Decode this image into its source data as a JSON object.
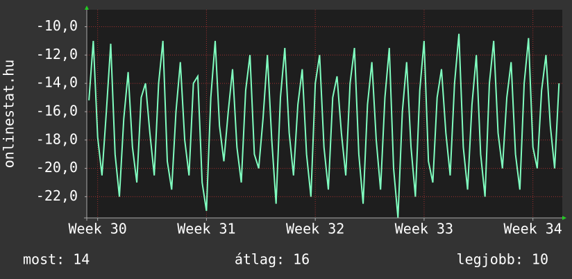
{
  "chart_data": {
    "type": "line",
    "y_label": "onlinestat.hu",
    "xlim": [
      29.9,
      34.27
    ],
    "xticks": [
      {
        "value": 30,
        "label": "Week 30"
      },
      {
        "value": 31,
        "label": "Week 31"
      },
      {
        "value": 32,
        "label": "Week 32"
      },
      {
        "value": 33,
        "label": "Week 33"
      },
      {
        "value": 34,
        "label": "Week 34"
      }
    ],
    "ylim": [
      -23.5,
      -8.8
    ],
    "yticks": [
      {
        "value": -10,
        "label": "-10,0"
      },
      {
        "value": -12,
        "label": "-12,0"
      },
      {
        "value": -14,
        "label": "-14,0"
      },
      {
        "value": -16,
        "label": "-16,0"
      },
      {
        "value": -18,
        "label": "-18,0"
      },
      {
        "value": -20,
        "label": "-20,0"
      },
      {
        "value": -22,
        "label": "-22,0"
      }
    ],
    "grid": true,
    "x": [
      29.92,
      29.96,
      30,
      30.04,
      30.08,
      30.12,
      30.16,
      30.2,
      30.24,
      30.28,
      30.32,
      30.36,
      30.4,
      30.44,
      30.48,
      30.52,
      30.56,
      30.6,
      30.64,
      30.68,
      30.72,
      30.76,
      30.8,
      30.84,
      30.88,
      30.92,
      30.96,
      31,
      31.04,
      31.08,
      31.12,
      31.16,
      31.2,
      31.24,
      31.28,
      31.32,
      31.36,
      31.4,
      31.44,
      31.48,
      31.52,
      31.56,
      31.6,
      31.64,
      31.68,
      31.72,
      31.76,
      31.8,
      31.84,
      31.88,
      31.92,
      31.96,
      32,
      32.04,
      32.08,
      32.12,
      32.16,
      32.2,
      32.24,
      32.28,
      32.32,
      32.36,
      32.4,
      32.44,
      32.48,
      32.52,
      32.56,
      32.6,
      32.64,
      32.68,
      32.72,
      32.76,
      32.8,
      32.84,
      32.88,
      32.92,
      32.96,
      33,
      33.04,
      33.08,
      33.12,
      33.16,
      33.2,
      33.24,
      33.28,
      33.32,
      33.36,
      33.4,
      33.44,
      33.48,
      33.52,
      33.56,
      33.6,
      33.64,
      33.68,
      33.72,
      33.76,
      33.8,
      33.84,
      33.88,
      33.92,
      33.96,
      34,
      34.04,
      34.08,
      34.12,
      34.16,
      34.2,
      34.24
    ],
    "series": [
      {
        "color": "#80ffc0",
        "values": [
          -15.2,
          -11,
          -17.8,
          -20.5,
          -16,
          -11.2,
          -19,
          -22,
          -16.5,
          -13.2,
          -18.5,
          -21,
          -15,
          -14,
          -17.5,
          -20.5,
          -14,
          -11,
          -19.5,
          -21.5,
          -16,
          -12.5,
          -18,
          -20.5,
          -14,
          -13.5,
          -21,
          -23,
          -15,
          -11,
          -17,
          -19.5,
          -16,
          -13,
          -18.5,
          -21,
          -14.5,
          -12,
          -19,
          -20,
          -16.5,
          -12,
          -18,
          -22.5,
          -15,
          -11.5,
          -17.5,
          -20.5,
          -15.5,
          -13,
          -19,
          -22,
          -14,
          -12,
          -18.5,
          -21.5,
          -15,
          -13.5,
          -17.5,
          -20.5,
          -14,
          -11.5,
          -19,
          -22.5,
          -15.5,
          -12.5,
          -18,
          -21.5,
          -15,
          -11.5,
          -20,
          -23.5,
          -16,
          -12.5,
          -18.5,
          -22,
          -14.5,
          -11,
          -19.5,
          -21,
          -15,
          -13,
          -17.5,
          -20.5,
          -14,
          -10.5,
          -18.5,
          -21.5,
          -15.5,
          -12,
          -19,
          -22,
          -14,
          -11,
          -17.5,
          -20,
          -15,
          -12.5,
          -19,
          -21.5,
          -14,
          -10.8,
          -18.5,
          -20,
          -14.5,
          -12,
          -17,
          -20,
          -14
        ]
      }
    ]
  },
  "footer": {
    "current": "most: 14",
    "average": "átlag: 16",
    "best": "legjobb: 10"
  }
}
